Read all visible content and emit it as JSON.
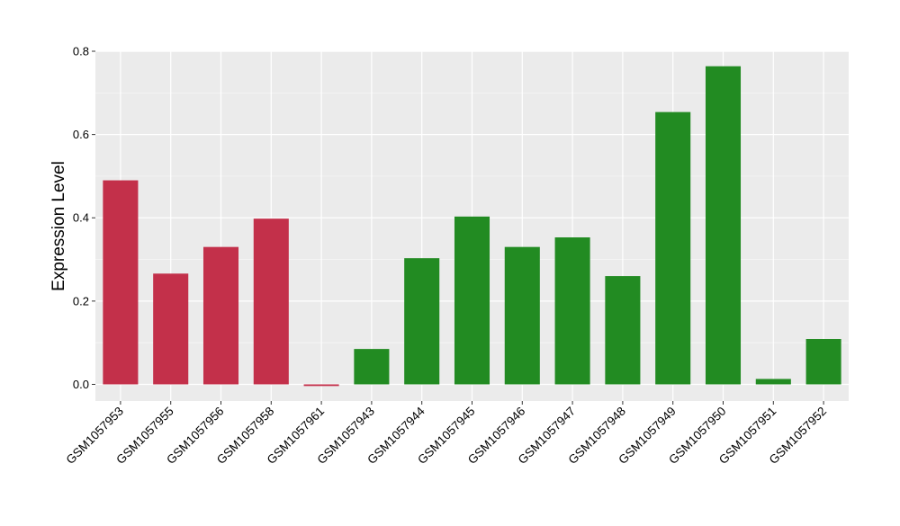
{
  "chart_data": {
    "type": "bar",
    "title": "",
    "xlabel": "",
    "ylabel": "Expression Level",
    "ylim": [
      -0.04,
      0.8
    ],
    "yticks": [
      0.0,
      0.2,
      0.4,
      0.6,
      0.8
    ],
    "ytick_labels": [
      "0.0",
      "0.2",
      "0.4",
      "0.6",
      "0.8"
    ],
    "grid": true,
    "legend": "none",
    "categories": [
      "GSM1057953",
      "GSM1057955",
      "GSM1057956",
      "GSM1057958",
      "GSM1057961",
      "GSM1057943",
      "GSM1057944",
      "GSM1057945",
      "GSM1057946",
      "GSM1057947",
      "GSM1057948",
      "GSM1057949",
      "GSM1057950",
      "GSM1057951",
      "GSM1057952"
    ],
    "values": [
      0.49,
      0.266,
      0.33,
      0.398,
      -0.004,
      0.085,
      0.303,
      0.403,
      0.33,
      0.353,
      0.26,
      0.654,
      0.764,
      0.013,
      0.109
    ],
    "groups": [
      "red",
      "red",
      "red",
      "red",
      "red",
      "green",
      "green",
      "green",
      "green",
      "green",
      "green",
      "green",
      "green",
      "green",
      "green"
    ],
    "colors": {
      "red": "#c3304a",
      "green": "#228b22",
      "panel": "#ebebeb",
      "grid_major": "#ffffff",
      "grid_minor": "#f5f5f5",
      "text": "#000000",
      "tick": "#333333"
    }
  }
}
